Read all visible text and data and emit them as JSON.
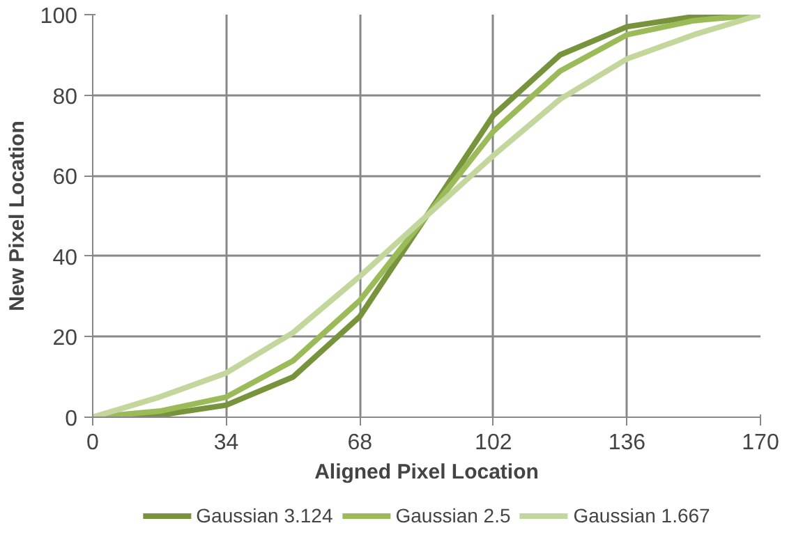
{
  "chart_data": {
    "type": "line",
    "xlabel": "Aligned Pixel Location",
    "ylabel": "New Pixel Location",
    "x": [
      0,
      17,
      34,
      51,
      68,
      85,
      102,
      119,
      136,
      153,
      170
    ],
    "series": [
      {
        "name": "Gaussian 3.124",
        "color": "#77933c",
        "values": [
          0,
          0.5,
          3,
          10,
          25,
          50,
          75,
          90,
          97,
          99.5,
          100
        ]
      },
      {
        "name": "Gaussian 2.5",
        "color": "#9bbb59",
        "values": [
          0,
          1.5,
          5,
          14,
          29,
          50,
          71,
          86,
          95,
          98.5,
          100
        ]
      },
      {
        "name": "Gaussian 1.667",
        "color": "#c3d69b",
        "values": [
          0,
          5,
          11,
          21,
          35,
          50,
          65,
          79,
          89,
          95,
          100
        ]
      }
    ],
    "xlim": [
      0,
      170
    ],
    "ylim": [
      0,
      100
    ],
    "xticks": [
      0,
      34,
      68,
      102,
      136,
      170
    ],
    "yticks": [
      0,
      20,
      40,
      60,
      80,
      100
    ],
    "grid": true,
    "legend": "bottom",
    "marker": "none",
    "line_style": "solid"
  }
}
